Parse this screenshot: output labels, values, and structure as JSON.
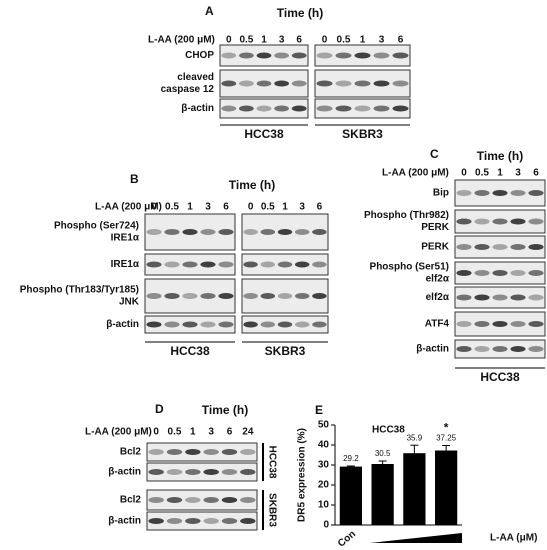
{
  "panels": [
    {
      "letter": "A",
      "time": "Time (h)",
      "treatment": "L-AA (200 μM)",
      "groups": [
        {
          "cell": "HCC38",
          "lanes": [
            0,
            0.5,
            1,
            3,
            6
          ]
        },
        {
          "cell": "SKBR3",
          "lanes": [
            0,
            0.5,
            1,
            3,
            6
          ]
        }
      ],
      "rows": [
        [
          "CHOP"
        ],
        [
          "cleaved",
          "caspase 12"
        ],
        [
          "β-actin"
        ]
      ]
    },
    {
      "letter": "B",
      "time": "Time (h)",
      "treatment": "L-AA (200 μM)",
      "groups": [
        {
          "cell": "HCC38",
          "lanes": [
            0,
            0.5,
            1,
            3,
            6
          ]
        },
        {
          "cell": "SKBR3",
          "lanes": [
            0,
            0.5,
            1,
            3,
            6
          ]
        }
      ],
      "rows": [
        [
          "Phospho (Ser724)",
          "IRE1α"
        ],
        [
          "IRE1α"
        ],
        [
          "Phospho (Thr183/Tyr185)",
          "JNK"
        ],
        [
          "β-actin"
        ]
      ]
    },
    {
      "letter": "C",
      "time": "Time (h)",
      "treatment": "L-AA (200 μM)",
      "groups": [
        {
          "cell": "HCC38",
          "lanes": [
            0,
            0.5,
            1,
            3,
            6
          ]
        }
      ],
      "rows": [
        [
          "Bip"
        ],
        [
          "Phospho (Thr982)",
          "PERK"
        ],
        [
          "PERK"
        ],
        [
          "Phospho (Ser51)",
          "elf2α"
        ],
        [
          "elf2α"
        ],
        [
          "ATF4"
        ],
        [
          "β-actin"
        ]
      ]
    },
    {
      "letter": "D",
      "time": "Time (h)",
      "treatment": "L-AA (200 μM)",
      "groups": [
        {
          "lanes": [
            0,
            0.5,
            1,
            3,
            6,
            24
          ]
        }
      ],
      "rows": [
        [
          "Bcl2"
        ],
        [
          "β-actin"
        ],
        [
          "Bcl2"
        ],
        [
          "β-actin"
        ]
      ],
      "cells": [
        "HCC38",
        "SKBR3"
      ]
    }
  ],
  "chart_data": {
    "type": "bar",
    "letter": "E",
    "title": "HCC38",
    "y_label": "DR5 expression (%)",
    "x_label": "L-AA (μM)",
    "categories": [
      "Con",
      null,
      null,
      null
    ],
    "series": [
      {
        "color": "#000000",
        "values": [
          29.2,
          30.5,
          35.9,
          37.25
        ],
        "errors": [
          0.3,
          1.5,
          4,
          2.5
        ]
      }
    ],
    "ylim": [
      0,
      50
    ],
    "yticks": [
      0,
      10,
      20,
      30,
      40,
      50
    ],
    "annotations": [
      {
        "category": 3,
        "text": "*"
      }
    ]
  }
}
